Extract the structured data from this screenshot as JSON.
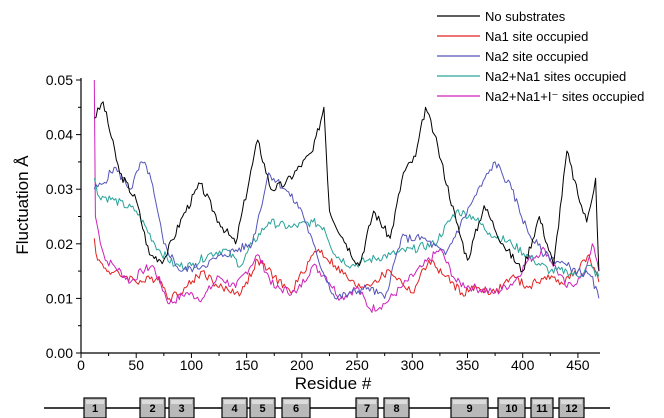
{
  "chart_data": {
    "type": "line",
    "xlabel": "Residue #",
    "ylabel": "Fluctuation Å",
    "xlim": [
      0,
      470
    ],
    "ylim": [
      0,
      0.05
    ],
    "x_ticks": [
      "0",
      "50",
      "100",
      "150",
      "200",
      "250",
      "300",
      "350",
      "400",
      "450"
    ],
    "y_ticks": [
      "0.00",
      "0.01",
      "0.02",
      "0.03",
      "0.04",
      "0.05"
    ],
    "legend_position": "top-right",
    "series": [
      {
        "name": "No substrates",
        "color": "#000000",
        "x": [
          12,
          20,
          35,
          50,
          62,
          75,
          92,
          108,
          125,
          140,
          160,
          172,
          185,
          210,
          220,
          225,
          240,
          252,
          265,
          280,
          292,
          303,
          312,
          320,
          340,
          350,
          365,
          382,
          400,
          415,
          428,
          440,
          450,
          458,
          466,
          469
        ],
        "y": [
          0.043,
          0.046,
          0.033,
          0.028,
          0.018,
          0.017,
          0.025,
          0.031,
          0.024,
          0.02,
          0.039,
          0.03,
          0.031,
          0.037,
          0.045,
          0.026,
          0.02,
          0.016,
          0.026,
          0.021,
          0.033,
          0.036,
          0.045,
          0.04,
          0.024,
          0.017,
          0.027,
          0.02,
          0.015,
          0.025,
          0.016,
          0.037,
          0.029,
          0.024,
          0.032,
          0.015
        ]
      },
      {
        "name": "Na1 site occupied",
        "color": "#e32222",
        "x": [
          12,
          15,
          25,
          40,
          55,
          70,
          80,
          95,
          110,
          125,
          145,
          160,
          175,
          190,
          210,
          215,
          230,
          250,
          265,
          280,
          300,
          315,
          330,
          345,
          360,
          375,
          390,
          405,
          420,
          435,
          450,
          460,
          469
        ],
        "y": [
          0.021,
          0.017,
          0.015,
          0.014,
          0.013,
          0.014,
          0.01,
          0.012,
          0.015,
          0.012,
          0.011,
          0.017,
          0.014,
          0.011,
          0.018,
          0.019,
          0.016,
          0.012,
          0.013,
          0.015,
          0.011,
          0.017,
          0.014,
          0.011,
          0.012,
          0.011,
          0.014,
          0.012,
          0.014,
          0.013,
          0.015,
          0.018,
          0.013
        ]
      },
      {
        "name": "Na2 site occupied",
        "color": "#5555bb",
        "x": [
          12,
          20,
          30,
          45,
          55,
          62,
          75,
          90,
          110,
          130,
          155,
          170,
          185,
          200,
          215,
          230,
          245,
          260,
          275,
          290,
          310,
          330,
          355,
          375,
          390,
          405,
          420,
          440,
          450,
          462,
          469
        ],
        "y": [
          0.03,
          0.031,
          0.034,
          0.03,
          0.035,
          0.033,
          0.02,
          0.015,
          0.016,
          0.018,
          0.02,
          0.033,
          0.03,
          0.026,
          0.017,
          0.01,
          0.011,
          0.012,
          0.01,
          0.021,
          0.021,
          0.018,
          0.028,
          0.035,
          0.03,
          0.022,
          0.018,
          0.016,
          0.015,
          0.014,
          0.01
        ]
      },
      {
        "name": "Na2+Na1 sites occupied",
        "color": "#2aa39a",
        "x": [
          12,
          15,
          30,
          50,
          70,
          85,
          100,
          115,
          130,
          145,
          155,
          170,
          190,
          210,
          220,
          230,
          245,
          260,
          280,
          300,
          320,
          340,
          355,
          370,
          390,
          410,
          425,
          440,
          450,
          460,
          469
        ],
        "y": [
          0.032,
          0.029,
          0.028,
          0.026,
          0.019,
          0.016,
          0.016,
          0.018,
          0.019,
          0.016,
          0.02,
          0.024,
          0.023,
          0.024,
          0.023,
          0.018,
          0.016,
          0.017,
          0.018,
          0.019,
          0.02,
          0.026,
          0.025,
          0.022,
          0.02,
          0.017,
          0.015,
          0.015,
          0.014,
          0.016,
          0.014
        ]
      },
      {
        "name": "Na2+Na1+I⁻ sites occupied",
        "color": "#cc22bb",
        "x": [
          12,
          13,
          16,
          22,
          30,
          45,
          55,
          65,
          80,
          95,
          110,
          125,
          140,
          160,
          175,
          195,
          210,
          222,
          235,
          250,
          262,
          275,
          290,
          310,
          325,
          340,
          355,
          375,
          392,
          405,
          420,
          440,
          455,
          463,
          469
        ],
        "y": [
          0.05,
          0.025,
          0.022,
          0.017,
          0.016,
          0.013,
          0.015,
          0.016,
          0.009,
          0.011,
          0.01,
          0.014,
          0.012,
          0.018,
          0.012,
          0.011,
          0.016,
          0.014,
          0.01,
          0.012,
          0.008,
          0.009,
          0.012,
          0.016,
          0.019,
          0.013,
          0.012,
          0.011,
          0.013,
          0.017,
          0.019,
          0.012,
          0.014,
          0.02,
          0.015
        ]
      }
    ],
    "tm_segments": [
      "1",
      "2",
      "3",
      "4",
      "5",
      "6",
      "7",
      "8",
      "9",
      "10",
      "11",
      "12"
    ]
  }
}
